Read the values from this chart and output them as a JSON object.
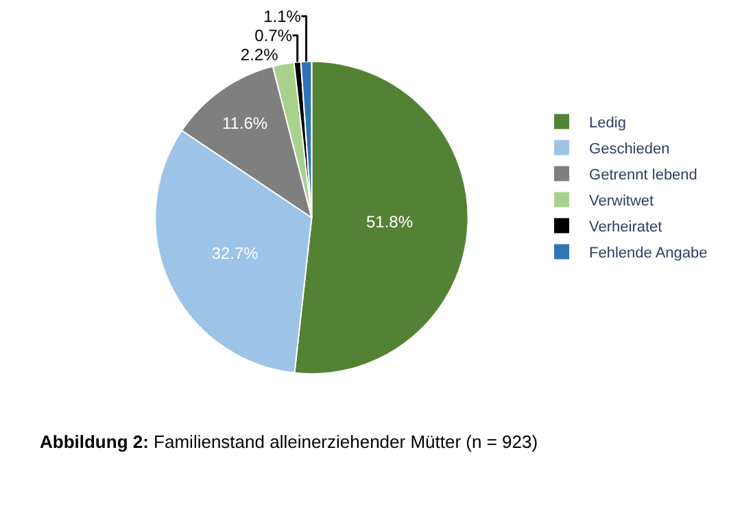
{
  "chart_data": {
    "type": "pie",
    "categories": [
      "Ledig",
      "Geschieden",
      "Getrennt lebend",
      "Verwitwet",
      "Verheiratet",
      "Fehlende Angabe"
    ],
    "values": [
      51.8,
      32.7,
      11.6,
      2.2,
      0.7,
      1.1
    ],
    "value_labels": [
      "51.8%",
      "32.7%",
      "11.6%",
      "2.2%",
      "0.7%",
      "1.1%"
    ],
    "colors": [
      "#548235",
      "#9dc3e6",
      "#7f7f7f",
      "#a9d18e",
      "#000000",
      "#2e75b6"
    ],
    "legend": "right",
    "annotations": [
      "Abbildung 2: Familienstand alleinerziehender Mütter (n = 923)"
    ]
  }
}
